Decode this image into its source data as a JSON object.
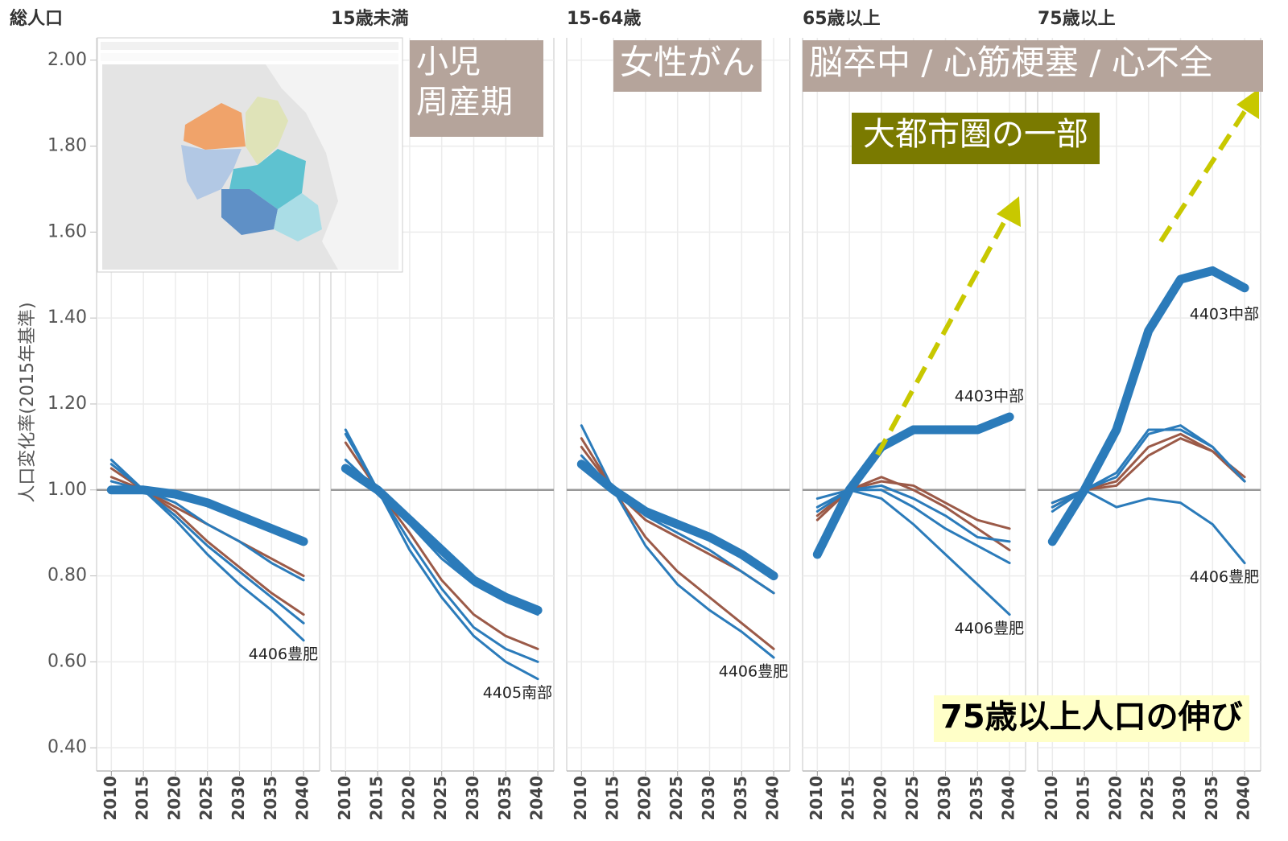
{
  "chart_data": [
    {
      "type": "line",
      "title": "総人口",
      "ylabel": "人口変化率(2015年基準)",
      "x": [
        2010,
        2015,
        2020,
        2025,
        2030,
        2035,
        2040
      ],
      "xlim": [
        2007.7,
        2042.5
      ],
      "xticks": [
        2010,
        2015,
        2020,
        2025,
        2030,
        2035,
        2040
      ],
      "ylim": [
        0.346,
        2.052
      ],
      "yticks": [
        {
          "value": 0.4,
          "label": "0.40"
        },
        {
          "value": 0.6,
          "label": "0.60"
        },
        {
          "value": 0.8,
          "label": "0.80"
        },
        {
          "value": 1.0,
          "label": "1.00"
        },
        {
          "value": 1.2,
          "label": "1.20"
        },
        {
          "value": 1.4,
          "label": "1.40"
        },
        {
          "value": 1.6,
          "label": "1.60"
        },
        {
          "value": 1.8,
          "label": "1.80"
        },
        {
          "value": 2.0,
          "label": "2.00"
        }
      ],
      "refline": 1.0,
      "grid": true,
      "series": [
        {
          "color": "#9b5a48",
          "values": [
            1.03,
            1.0,
            0.96,
            0.92,
            0.88,
            0.84,
            0.8
          ]
        },
        {
          "color": "#9b5a48",
          "values": [
            1.05,
            1.0,
            0.95,
            0.88,
            0.82,
            0.76,
            0.71
          ]
        },
        {
          "color": "#2b7bba",
          "values": [
            1.02,
            1.0,
            0.97,
            0.92,
            0.88,
            0.83,
            0.79
          ]
        },
        {
          "color": "#2b7bba",
          "values": [
            1.06,
            1.0,
            0.94,
            0.87,
            0.81,
            0.75,
            0.69
          ]
        },
        {
          "color": "#2b7bba",
          "label": "4406豊肥",
          "values": [
            1.07,
            1.0,
            0.93,
            0.85,
            0.78,
            0.72,
            0.65
          ]
        },
        {
          "color": "#2b7bba",
          "bold": true,
          "values": [
            1.0,
            1.0,
            0.99,
            0.97,
            0.94,
            0.91,
            0.88
          ]
        }
      ]
    },
    {
      "type": "line",
      "title": "15歳未満",
      "x": [
        2010,
        2015,
        2020,
        2025,
        2030,
        2035,
        2040
      ],
      "xlim": [
        2007.7,
        2042.5
      ],
      "xticks": [
        2010,
        2015,
        2020,
        2025,
        2030,
        2035,
        2040
      ],
      "ylim": [
        0.346,
        2.052
      ],
      "yticks": [
        0.4,
        0.6,
        0.8,
        1.0,
        1.2,
        1.4,
        1.6,
        1.8,
        2.0
      ],
      "refline": 1.0,
      "grid": true,
      "annotations": [
        "小児\n周産期"
      ],
      "series": [
        {
          "color": "#9b5a48",
          "values": [
            1.11,
            1.0,
            0.9,
            0.79,
            0.71,
            0.66,
            0.63
          ]
        },
        {
          "color": "#2b7bba",
          "values": [
            1.07,
            1.0,
            0.92,
            0.84,
            0.78,
            0.74,
            0.71
          ]
        },
        {
          "color": "#2b7bba",
          "values": [
            1.13,
            1.0,
            0.88,
            0.77,
            0.68,
            0.63,
            0.6
          ]
        },
        {
          "color": "#2b7bba",
          "label": "4405南部",
          "values": [
            1.14,
            1.0,
            0.86,
            0.75,
            0.66,
            0.6,
            0.56
          ]
        },
        {
          "color": "#2b7bba",
          "bold": true,
          "values": [
            1.05,
            1.0,
            0.93,
            0.86,
            0.79,
            0.75,
            0.72
          ]
        }
      ]
    },
    {
      "type": "line",
      "title": "15-64歳",
      "x": [
        2010,
        2015,
        2020,
        2025,
        2030,
        2035,
        2040
      ],
      "xlim": [
        2007.7,
        2042.5
      ],
      "xticks": [
        2010,
        2015,
        2020,
        2025,
        2030,
        2035,
        2040
      ],
      "ylim": [
        0.346,
        2.052
      ],
      "yticks": [
        0.4,
        0.6,
        0.8,
        1.0,
        1.2,
        1.4,
        1.6,
        1.8,
        2.0
      ],
      "refline": 1.0,
      "grid": true,
      "annotations": [
        "女性がん"
      ],
      "series": [
        {
          "color": "#9b5a48",
          "values": [
            1.1,
            1.0,
            0.93,
            0.89,
            0.85,
            0.81,
            0.76
          ]
        },
        {
          "color": "#9b5a48",
          "values": [
            1.12,
            1.0,
            0.89,
            0.81,
            0.75,
            0.69,
            0.63
          ]
        },
        {
          "color": "#2b7bba",
          "values": [
            1.08,
            1.0,
            0.94,
            0.9,
            0.86,
            0.81,
            0.76
          ]
        },
        {
          "color": "#2b7bba",
          "label": "4406豊肥",
          "values": [
            1.15,
            1.0,
            0.87,
            0.78,
            0.72,
            0.67,
            0.61
          ]
        },
        {
          "color": "#2b7bba",
          "bold": true,
          "values": [
            1.06,
            1.0,
            0.95,
            0.92,
            0.89,
            0.85,
            0.8
          ]
        }
      ]
    },
    {
      "type": "line",
      "title": "65歳以上",
      "x": [
        2010,
        2015,
        2020,
        2025,
        2030,
        2035,
        2040
      ],
      "xlim": [
        2007.7,
        2042.5
      ],
      "xticks": [
        2010,
        2015,
        2020,
        2025,
        2030,
        2035,
        2040
      ],
      "ylim": [
        0.346,
        2.052
      ],
      "yticks": [
        0.4,
        0.6,
        0.8,
        1.0,
        1.2,
        1.4,
        1.6,
        1.8,
        2.0
      ],
      "refline": 1.0,
      "grid": true,
      "annotations": [
        "脳卒中 / 心筋梗塞 / 心不全",
        "大都市圏の一部"
      ],
      "series": [
        {
          "color": "#9b5a48",
          "values": [
            0.94,
            1.0,
            1.02,
            1.01,
            0.97,
            0.93,
            0.91
          ]
        },
        {
          "color": "#9b5a48",
          "values": [
            0.93,
            1.0,
            1.03,
            1.0,
            0.96,
            0.91,
            0.86
          ]
        },
        {
          "color": "#2b7bba",
          "values": [
            0.95,
            1.0,
            1.01,
            0.98,
            0.94,
            0.89,
            0.88
          ]
        },
        {
          "color": "#2b7bba",
          "values": [
            0.96,
            1.0,
            1.0,
            0.96,
            0.91,
            0.87,
            0.83
          ]
        },
        {
          "color": "#2b7bba",
          "label": "4406豊肥",
          "values": [
            0.98,
            1.0,
            0.98,
            0.92,
            0.85,
            0.78,
            0.71
          ]
        },
        {
          "color": "#2b7bba",
          "bold": true,
          "label": "4403中部",
          "values": [
            0.85,
            1.0,
            1.1,
            1.14,
            1.14,
            1.14,
            1.17
          ]
        }
      ]
    },
    {
      "type": "line",
      "title": "75歳以上",
      "x": [
        2010,
        2015,
        2020,
        2025,
        2030,
        2035,
        2040
      ],
      "xlim": [
        2007.7,
        2042.5
      ],
      "xticks": [
        2010,
        2015,
        2020,
        2025,
        2030,
        2035,
        2040
      ],
      "ylim": [
        0.346,
        2.052
      ],
      "yticks": [
        0.4,
        0.6,
        0.8,
        1.0,
        1.2,
        1.4,
        1.6,
        1.8,
        2.0
      ],
      "refline": 1.0,
      "grid": true,
      "annotations": [
        "75歳以上人口の伸び"
      ],
      "series": [
        {
          "color": "#9b5a48",
          "values": [
            0.96,
            1.0,
            1.01,
            1.08,
            1.12,
            1.09,
            1.02
          ]
        },
        {
          "color": "#9b5a48",
          "values": [
            0.97,
            1.0,
            1.02,
            1.1,
            1.13,
            1.09,
            1.03
          ]
        },
        {
          "color": "#2b7bba",
          "values": [
            0.95,
            1.0,
            1.04,
            1.14,
            1.14,
            1.1,
            1.02
          ]
        },
        {
          "color": "#2b7bba",
          "values": [
            0.96,
            1.0,
            1.03,
            1.13,
            1.15,
            1.1,
            1.02
          ]
        },
        {
          "color": "#2b7bba",
          "label": "4406豊肥",
          "values": [
            0.97,
            1.0,
            0.96,
            0.98,
            0.97,
            0.92,
            0.83
          ]
        },
        {
          "color": "#2b7bba",
          "bold": true,
          "label": "4403中部",
          "values": [
            0.88,
            1.0,
            1.14,
            1.37,
            1.49,
            1.51,
            1.47
          ]
        }
      ]
    }
  ]
}
